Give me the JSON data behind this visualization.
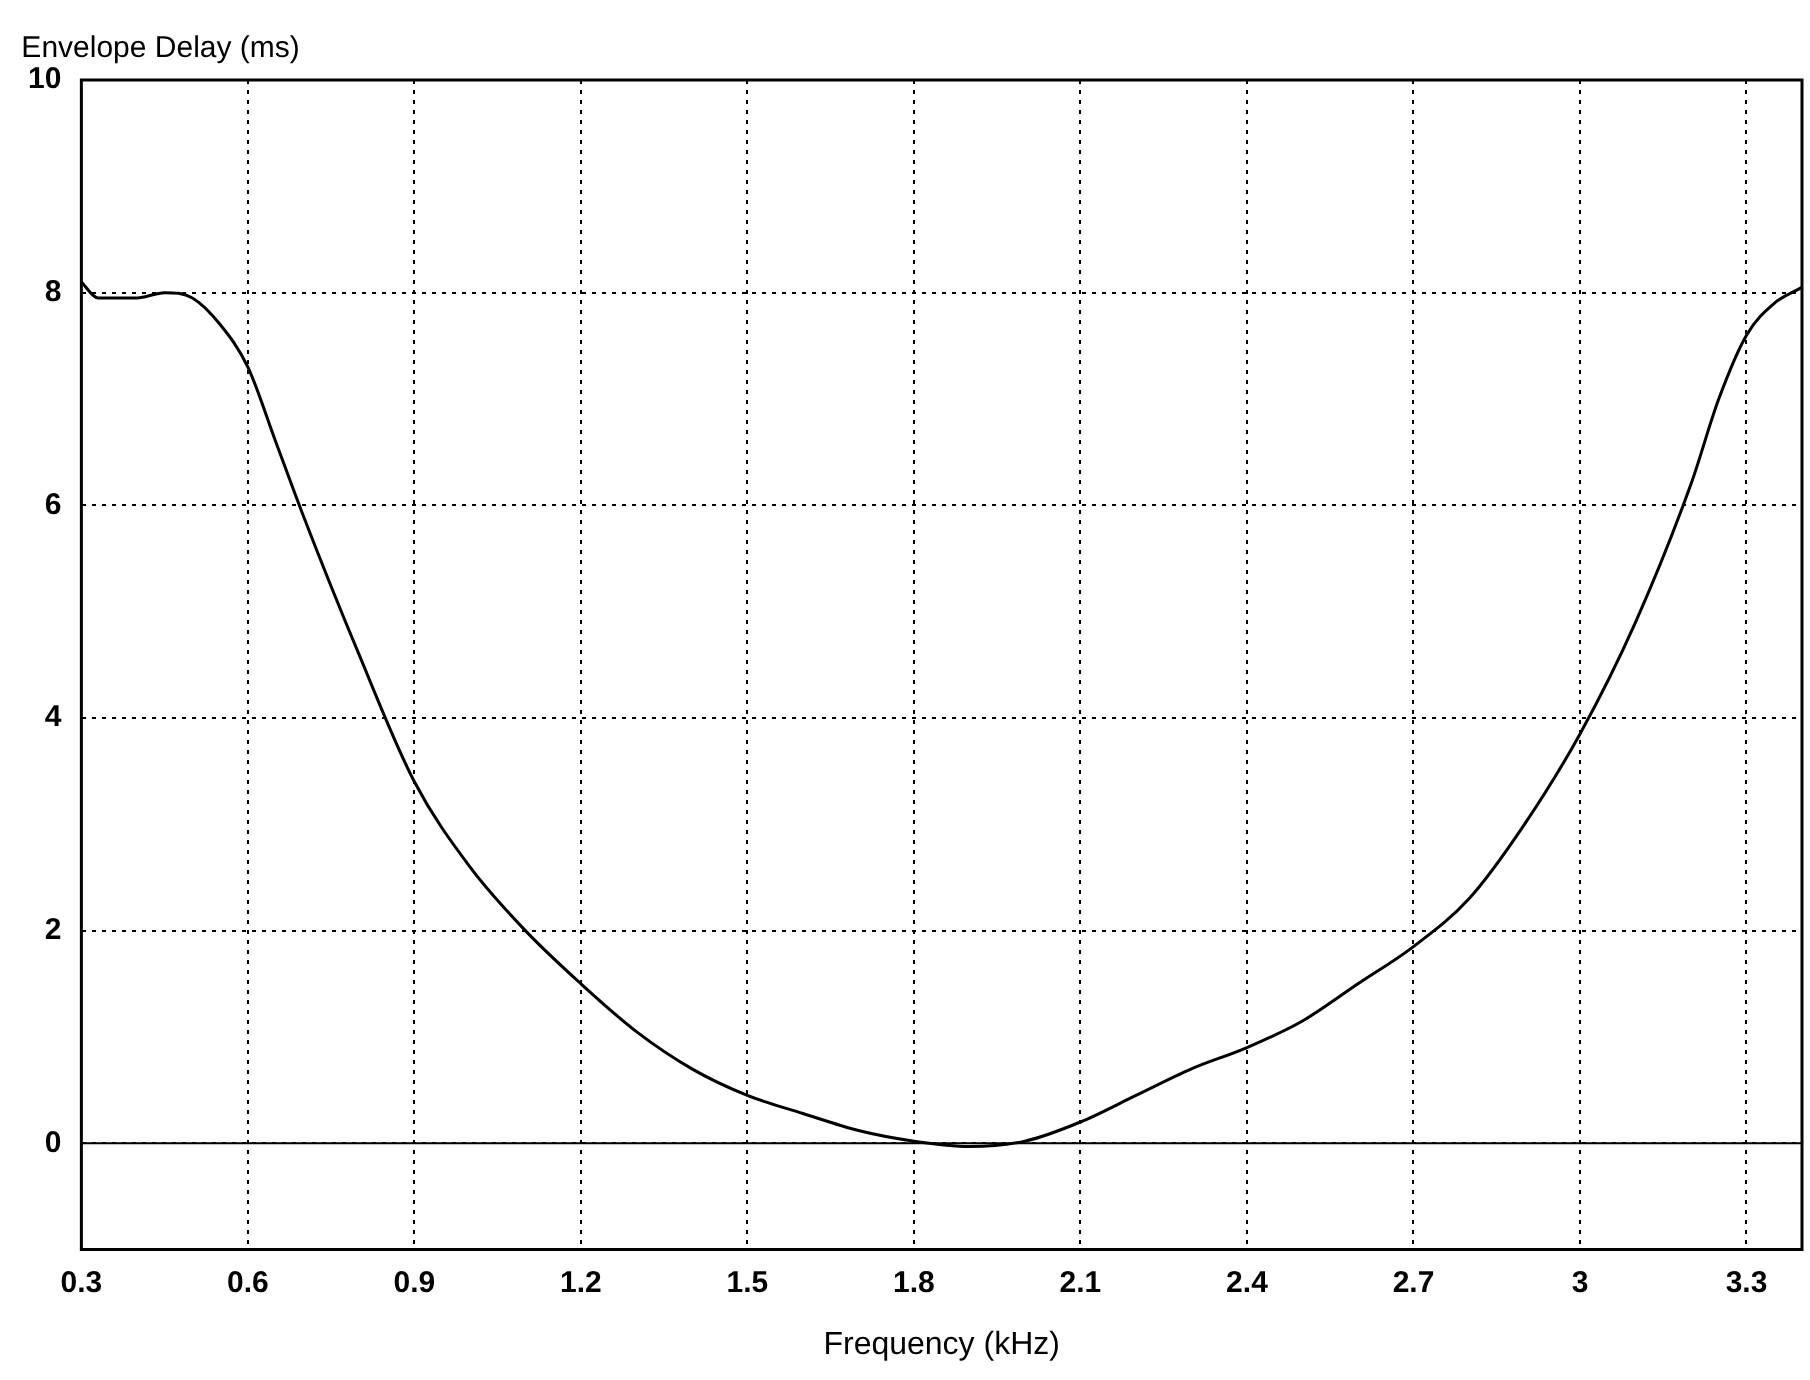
{
  "chart_data": {
    "type": "line",
    "ylabel": "Envelope Delay (ms)",
    "xlabel": "Frequency (kHz)",
    "x": [
      0.3,
      0.33,
      0.4,
      0.45,
      0.5,
      0.55,
      0.6,
      0.65,
      0.7,
      0.8,
      0.9,
      1.0,
      1.1,
      1.2,
      1.3,
      1.4,
      1.5,
      1.6,
      1.7,
      1.8,
      1.9,
      2.0,
      2.1,
      2.2,
      2.3,
      2.4,
      2.5,
      2.6,
      2.7,
      2.8,
      2.9,
      3.0,
      3.1,
      3.2,
      3.25,
      3.3,
      3.35,
      3.4
    ],
    "series": [
      {
        "color": "#000000",
        "values": [
          8.1,
          7.95,
          7.95,
          8.0,
          7.95,
          7.7,
          7.3,
          6.6,
          5.9,
          4.6,
          3.4,
          2.6,
          2.0,
          1.5,
          1.05,
          0.7,
          0.45,
          0.28,
          0.12,
          0.02,
          -0.03,
          0.02,
          0.2,
          0.45,
          0.7,
          0.9,
          1.15,
          1.5,
          1.85,
          2.3,
          3.0,
          3.85,
          4.9,
          6.2,
          7.0,
          7.6,
          7.9,
          8.05
        ]
      }
    ],
    "xlim": [
      0.3,
      3.4
    ],
    "xticks": [
      0.3,
      0.6,
      0.9,
      1.2,
      1.5,
      1.8,
      2.1,
      2.4,
      2.7,
      3,
      3.3
    ],
    "ylim": [
      -1,
      10
    ],
    "yticks": [
      0,
      2,
      4,
      6,
      8,
      10
    ],
    "ref_lines": [
      {
        "axis": "y",
        "value": 0,
        "line_style": "solid"
      }
    ],
    "grid": true,
    "legend": false,
    "marker": "none",
    "line_style": "solid"
  }
}
